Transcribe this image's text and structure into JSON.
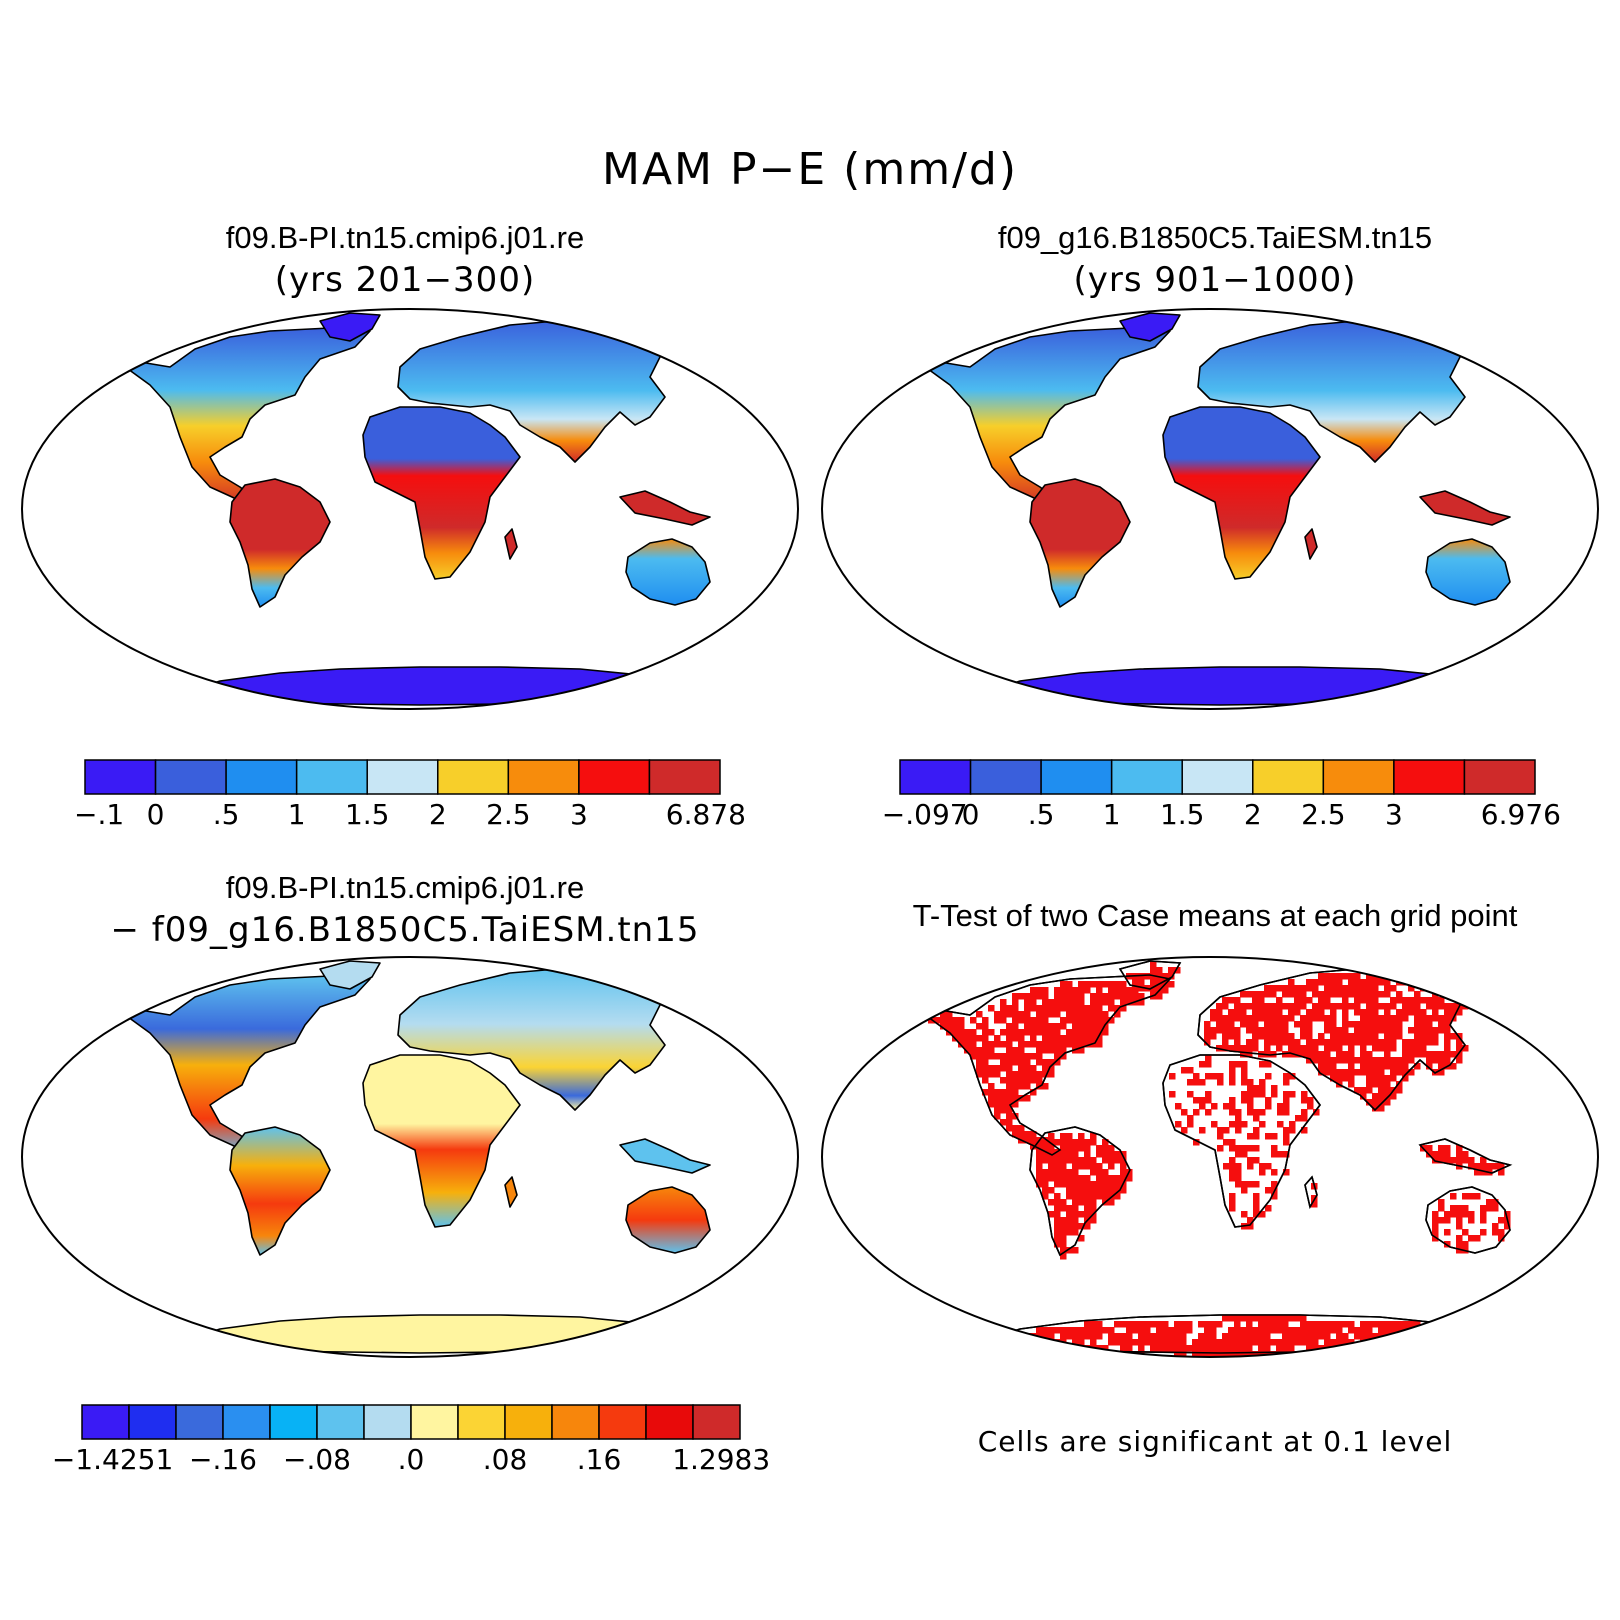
{
  "title": "MAM P−E (mm/d)",
  "panels": {
    "top_left": {
      "case": "f09.B-PI.tn15.cmip6.j01.re",
      "years": "(yrs 201−300)",
      "colorbar": {
        "colors": [
          "#3a1bf5",
          "#3a5fdc",
          "#1f8ef0",
          "#4cbbf0",
          "#c8e6f5",
          "#f7cf2a",
          "#f78c0c",
          "#f50e0e",
          "#cf2a2a"
        ],
        "ticks": [
          "−.1",
          "0",
          ".5",
          "1",
          "1.5",
          "2",
          "2.5",
          "3",
          "6.878"
        ]
      }
    },
    "top_right": {
      "case": "f09_g16.B1850C5.TaiESM.tn15",
      "years": "(yrs 901−1000)",
      "colorbar": {
        "colors": [
          "#3a1bf5",
          "#3a5fdc",
          "#1f8ef0",
          "#4cbbf0",
          "#c8e6f5",
          "#f7cf2a",
          "#f78c0c",
          "#f50e0e",
          "#cf2a2a"
        ],
        "ticks": [
          "−.097",
          "0",
          ".5",
          "1",
          "1.5",
          "2",
          "2.5",
          "3",
          "6.976"
        ]
      }
    },
    "bottom_left": {
      "case": "f09.B-PI.tn15.cmip6.j01.re",
      "subtitle": "− f09_g16.B1850C5.TaiESM.tn15",
      "colorbar": {
        "colors": [
          "#3a1bf5",
          "#1f2ef0",
          "#3a6adc",
          "#2a8ff0",
          "#08b2f5",
          "#5ec2ee",
          "#b4dcf0",
          "#fff5a0",
          "#fbd434",
          "#f7b00c",
          "#f7860c",
          "#f53a0e",
          "#e80a0a",
          "#cf2a2a"
        ],
        "ticks": [
          "−1.4251",
          "−.16",
          "−.08",
          ".0",
          ".08",
          ".16",
          "1.2983"
        ]
      }
    },
    "bottom_right": {
      "title": "T-Test of two Case means at each grid point",
      "footnote": "Cells are significant at 0.1 level",
      "fill_color": "#f50e0e"
    }
  },
  "map_colors": {
    "ocean": "#ffffff",
    "coast": "#000000",
    "antarctic": "#3a1bf5",
    "wet_tropics": "#cf2a2a",
    "sahara": "#3a5fdc",
    "diff_neutral": "#fff5a0",
    "diff_cool": "#b4dcf0"
  }
}
